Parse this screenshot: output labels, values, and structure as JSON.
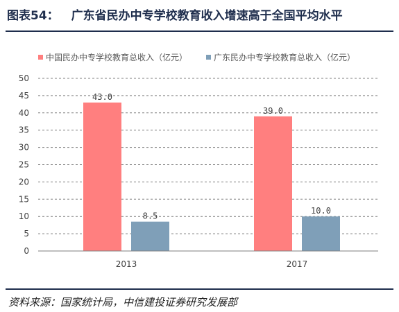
{
  "header": {
    "figure_label": "图表54：",
    "title": "广东省民办中专学校教育收入增速高于全国平均水平"
  },
  "footer": {
    "source": "资料来源：国家统计局，中信建投证券研究发展部"
  },
  "colors": {
    "series1": "#ff7f7f",
    "series2": "#7f9fb8",
    "title": "#1f2e4d",
    "grid": "#7f7f7f"
  },
  "chart_data": {
    "type": "bar",
    "categories": [
      "2013",
      "2017"
    ],
    "series": [
      {
        "name": "中国民办中专学校教育总收入（亿元）",
        "values": [
          43.0,
          39.0
        ],
        "labels": [
          "43.0",
          "39.0"
        ]
      },
      {
        "name": "广东民办中专学校教育总收入（亿元）",
        "values": [
          8.5,
          10.0
        ],
        "labels": [
          "8.5",
          "10.0"
        ]
      }
    ],
    "yticks": [
      "0",
      "5",
      "10",
      "15",
      "20",
      "25",
      "30",
      "35",
      "40",
      "45",
      "50"
    ],
    "ylim": [
      0,
      50
    ],
    "grid": "dashed horizontal",
    "legend": "top"
  }
}
